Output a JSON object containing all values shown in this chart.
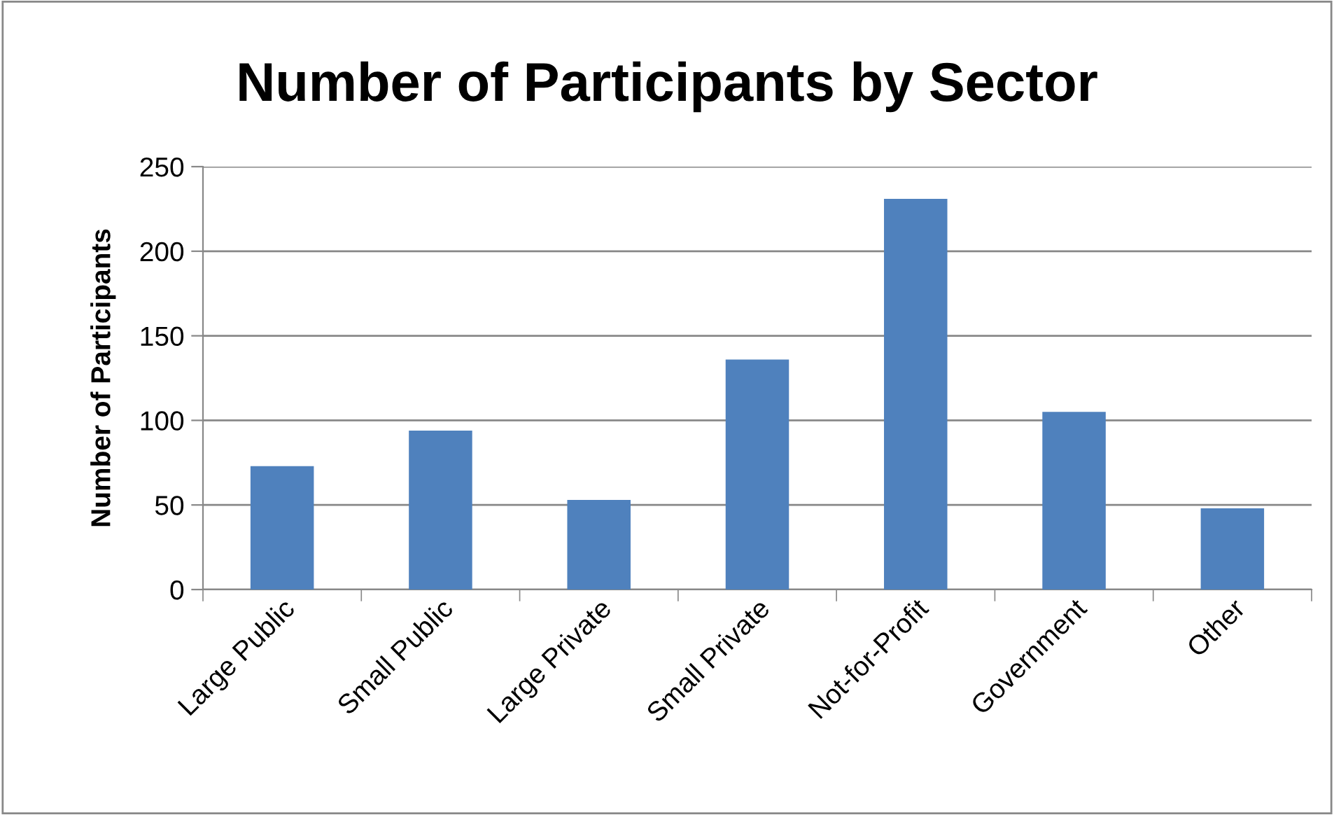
{
  "chart_data": {
    "type": "bar",
    "title": "Number of Participants by Sector",
    "ylabel": "Number of Participants",
    "categories": [
      "Large Public",
      "Small Public",
      "Large Private",
      "Small Private",
      "Not-for-Profit",
      "Government",
      "Other"
    ],
    "values": [
      73,
      94,
      53,
      136,
      231,
      105,
      48
    ],
    "color": "#4f81bd",
    "ylim": [
      0,
      250
    ],
    "yticks": [
      0,
      50,
      100,
      150,
      200,
      250
    ],
    "grid": "y",
    "legend": false
  }
}
